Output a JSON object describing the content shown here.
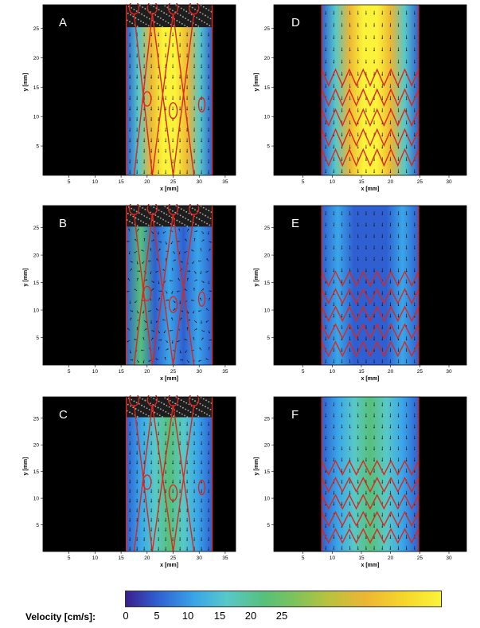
{
  "panels": [
    {
      "label": "A",
      "axis": "long",
      "flow": "fast",
      "stent": "valve"
    },
    {
      "label": "D",
      "axis": "short",
      "flow": "fast",
      "stent": "zigzag"
    },
    {
      "label": "B",
      "axis": "long",
      "flow": "vortex",
      "stent": "valve"
    },
    {
      "label": "E",
      "axis": "short",
      "flow": "slow",
      "stent": "zigzag"
    },
    {
      "label": "C",
      "axis": "long",
      "flow": "medium",
      "stent": "valve"
    },
    {
      "label": "F",
      "axis": "short",
      "flow": "medium",
      "stent": "zigzag"
    }
  ],
  "axes": {
    "xlabel": "x [mm]",
    "ylabel": "y [mm]",
    "x_ticks_long": [
      "5",
      "10",
      "15",
      "20",
      "25",
      "30",
      "35"
    ],
    "x_ticks_short": [
      "5",
      "10",
      "15",
      "20",
      "25",
      "30"
    ],
    "y_ticks": [
      "5",
      "10",
      "15",
      "20",
      "25"
    ]
  },
  "colorbar": {
    "title": "Velocity [cm/s]:",
    "ticks": [
      "0",
      "5",
      "10",
      "15",
      "20",
      "25"
    ],
    "colors": [
      "#3b1f8c",
      "#2f5fd0",
      "#3aa6e8",
      "#58c8c8",
      "#57c07a",
      "#b7c340",
      "#ecb634",
      "#fbf33a"
    ]
  }
}
